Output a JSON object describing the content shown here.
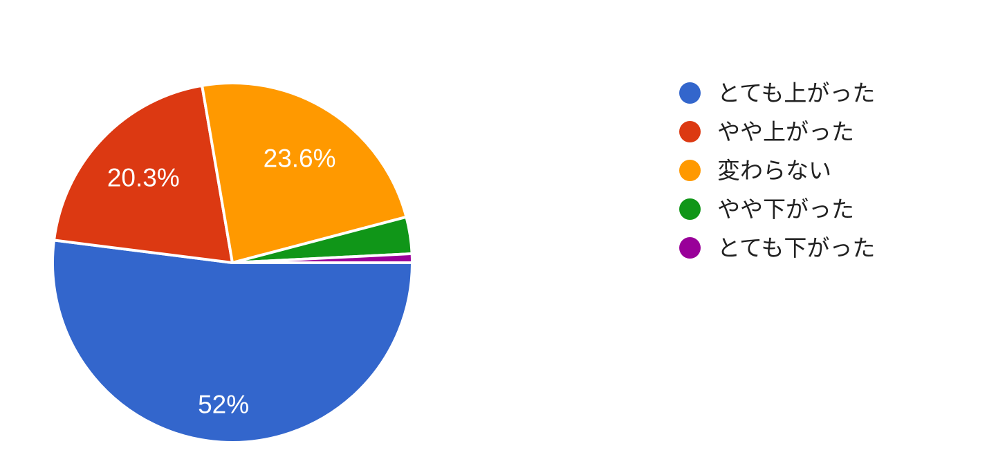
{
  "page": {
    "background_color": "#ffffff"
  },
  "chart_data": {
    "type": "pie",
    "title": "",
    "legend_position": "right",
    "start_angle_deg": 90,
    "direction": "clockwise",
    "slice_label_color": "#ffffff",
    "legend_text_color": "#212121",
    "slice_border_color": "#ffffff",
    "slices": [
      {
        "label": "とても上がった",
        "pct": 52.0,
        "display_label": "52%",
        "color": "#3366CC"
      },
      {
        "label": "やや上がった",
        "pct": 20.3,
        "display_label": "20.3%",
        "color": "#DC3912"
      },
      {
        "label": "変わらない",
        "pct": 23.6,
        "display_label": "23.6%",
        "color": "#FF9900"
      },
      {
        "label": "やや下がった",
        "pct": 3.3,
        "display_label": "",
        "color": "#109618"
      },
      {
        "label": "とても下がった",
        "pct": 0.8,
        "display_label": "",
        "color": "#990099"
      }
    ],
    "notes": "Percentages for the green and purple slices are estimated from arc angles; their data labels are hidden in the chart."
  }
}
